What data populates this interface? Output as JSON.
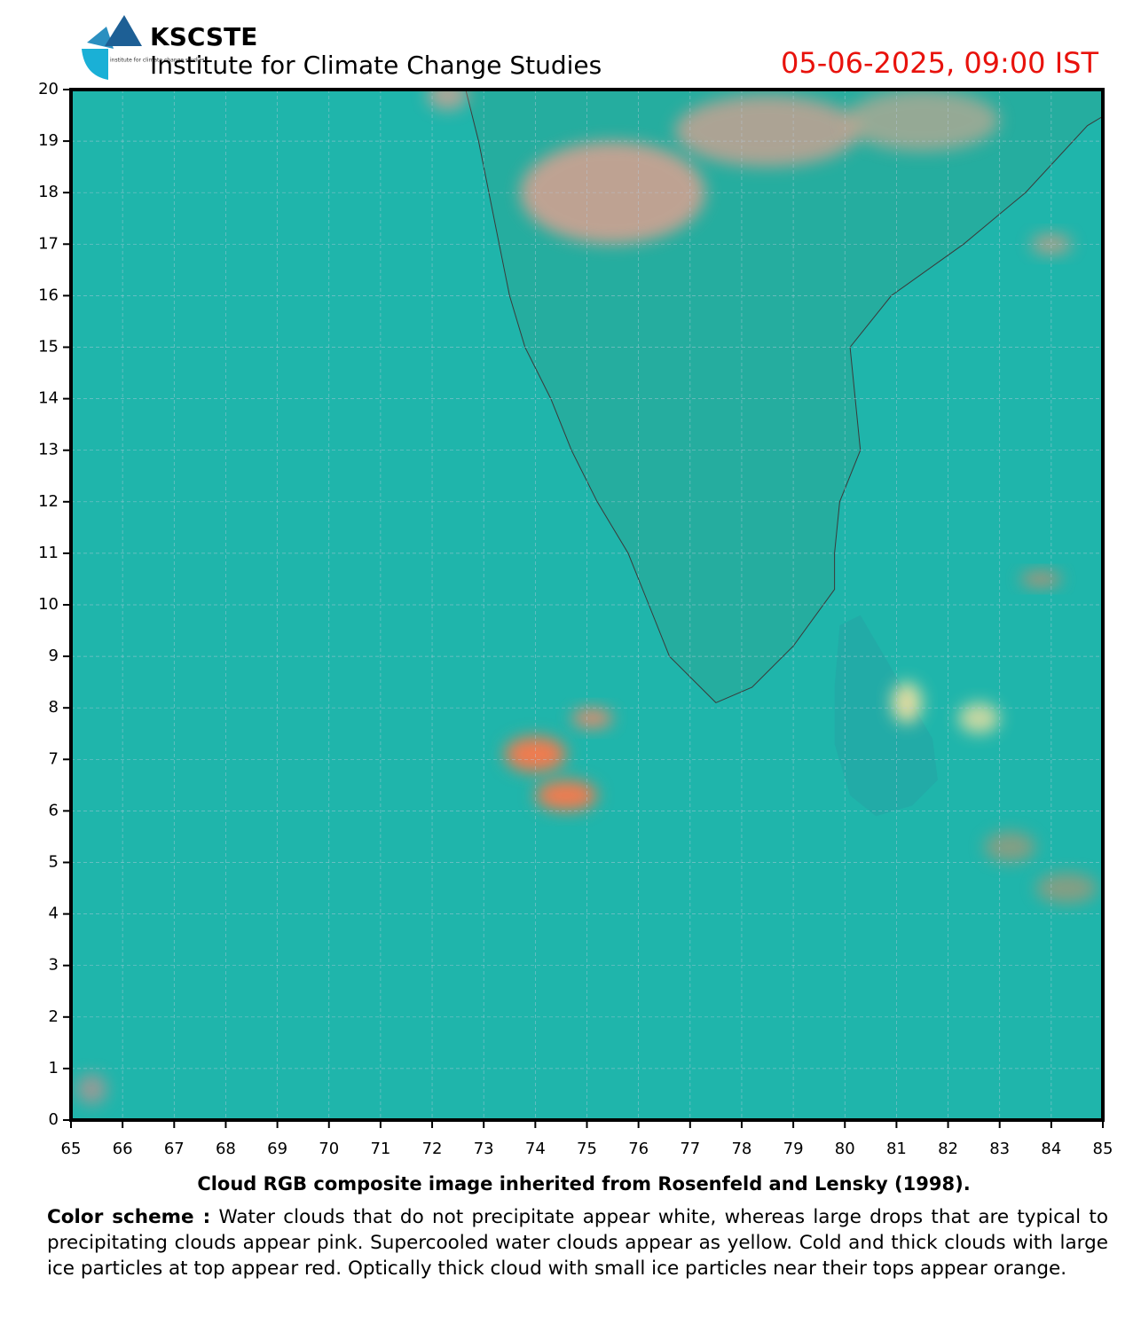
{
  "header": {
    "logo_text": "institute for climate change studies",
    "org": "KSCSTE",
    "institute": "Institute for Climate Change Studies",
    "datetime": "05-06-2025, 09:00 IST"
  },
  "chart_data": {
    "type": "map",
    "xlim": [
      65,
      85
    ],
    "ylim": [
      0,
      20
    ],
    "xticks": [
      65,
      66,
      67,
      68,
      69,
      70,
      71,
      72,
      73,
      74,
      75,
      76,
      77,
      78,
      79,
      80,
      81,
      82,
      83,
      84,
      85
    ],
    "yticks": [
      0,
      1,
      2,
      3,
      4,
      5,
      6,
      7,
      8,
      9,
      10,
      11,
      12,
      13,
      14,
      15,
      16,
      17,
      18,
      19,
      20
    ],
    "grid": true
  },
  "caption": "Cloud RGB composite image inherited from Rosenfeld and Lensky (1998).",
  "color_scheme": {
    "label": "Color scheme :",
    "text": "Water clouds that do not precipitate appear white, whereas large drops that are typical to precipitating clouds appear pink. Supercooled water clouds appear as yellow. Cold and thick clouds with large ice particles at top appear red. Optically thick cloud with small ice particles near their tops appear orange."
  }
}
